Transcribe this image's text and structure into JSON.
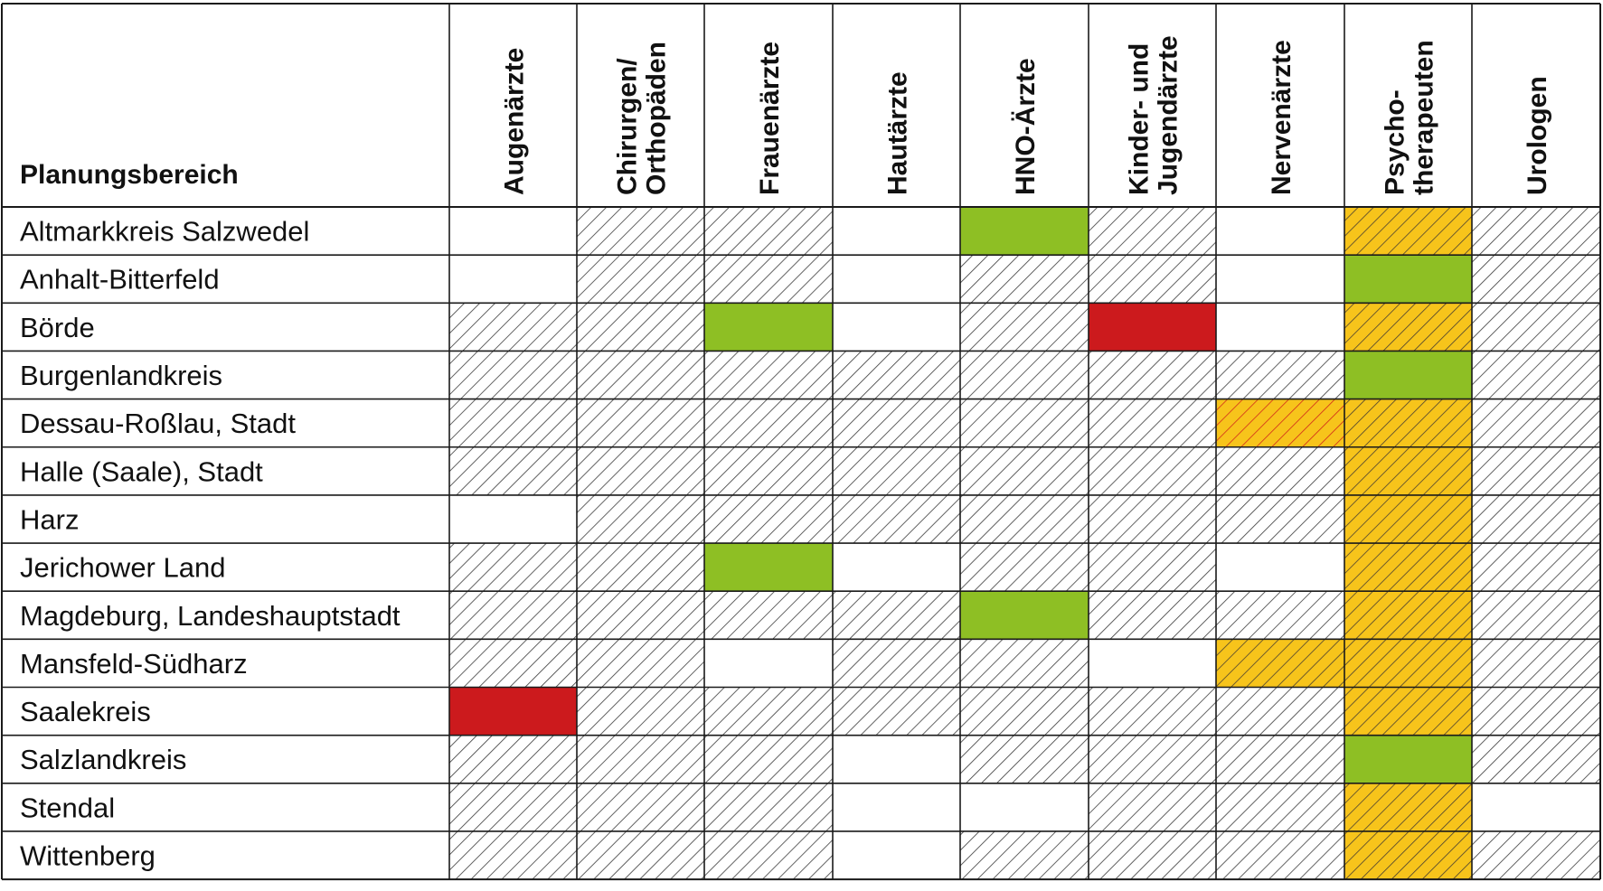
{
  "chart_data": {
    "type": "table",
    "row_header": "Planungsbereich",
    "columns": [
      [
        "Augenärzte"
      ],
      [
        "Chirurgen/",
        "Orthopäden"
      ],
      [
        "Frauenärzte"
      ],
      [
        "Hautärzte"
      ],
      [
        "HNO-Ärzte"
      ],
      [
        "Kinder- und",
        "Jugendärzte"
      ],
      [
        "Nervenärzte"
      ],
      [
        "Psycho-",
        "therapeuten"
      ],
      [
        "Urologen"
      ]
    ],
    "rows": [
      "Altmarkkreis Salzwedel",
      "Anhalt-Bitterfeld",
      "Börde",
      "Burgenlandkreis",
      "Dessau-Roßlau, Stadt",
      "Halle (Saale), Stadt",
      "Harz",
      "Jerichower Land",
      "Magdeburg, Landeshauptstadt",
      "Mansfeld-Südharz",
      "Saalekreis",
      "Salzlandkreis",
      "Stendal",
      "Wittenberg"
    ],
    "cells": [
      [
        "white",
        "hatch",
        "hatch",
        "white",
        "green",
        "hatch",
        "white",
        "yellow-hatch",
        "hatch"
      ],
      [
        "white",
        "hatch",
        "hatch",
        "white",
        "hatch",
        "hatch",
        "white",
        "green",
        "hatch"
      ],
      [
        "hatch",
        "hatch",
        "green",
        "white",
        "hatch",
        "red",
        "white",
        "yellow-hatch",
        "hatch"
      ],
      [
        "hatch",
        "hatch",
        "hatch",
        "hatch",
        "hatch",
        "hatch",
        "hatch",
        "green",
        "hatch"
      ],
      [
        "hatch",
        "hatch",
        "hatch",
        "hatch",
        "hatch",
        "hatch",
        "red-yellow-hatch",
        "yellow-hatch",
        "hatch"
      ],
      [
        "hatch",
        "hatch",
        "hatch",
        "hatch",
        "hatch",
        "hatch",
        "hatch",
        "yellow-hatch",
        "hatch"
      ],
      [
        "white",
        "hatch",
        "hatch",
        "hatch",
        "hatch",
        "hatch",
        "hatch",
        "yellow-hatch",
        "hatch"
      ],
      [
        "hatch",
        "hatch",
        "green",
        "white",
        "hatch",
        "hatch",
        "white",
        "yellow-hatch",
        "hatch"
      ],
      [
        "hatch",
        "hatch",
        "hatch",
        "hatch",
        "green",
        "hatch",
        "hatch",
        "yellow-hatch",
        "hatch"
      ],
      [
        "hatch",
        "hatch",
        "white",
        "hatch",
        "hatch",
        "white",
        "yellow-hatch",
        "yellow-hatch",
        "hatch"
      ],
      [
        "red",
        "hatch",
        "hatch",
        "hatch",
        "hatch",
        "hatch",
        "hatch",
        "yellow-hatch",
        "hatch"
      ],
      [
        "hatch",
        "hatch",
        "hatch",
        "white",
        "hatch",
        "hatch",
        "hatch",
        "green",
        "hatch"
      ],
      [
        "hatch",
        "hatch",
        "hatch",
        "white",
        "white",
        "hatch",
        "hatch",
        "yellow-hatch",
        "white"
      ],
      [
        "hatch",
        "hatch",
        "hatch",
        "white",
        "hatch",
        "hatch",
        "hatch",
        "yellow-hatch",
        "hatch"
      ]
    ],
    "colors": {
      "green": "#8ebf24",
      "red": "#cc1a1d",
      "yellow": "#f7c41b",
      "hatch_line": "#3a3a3a",
      "grid_line": "#1a1a1a",
      "white": "#ffffff"
    }
  }
}
